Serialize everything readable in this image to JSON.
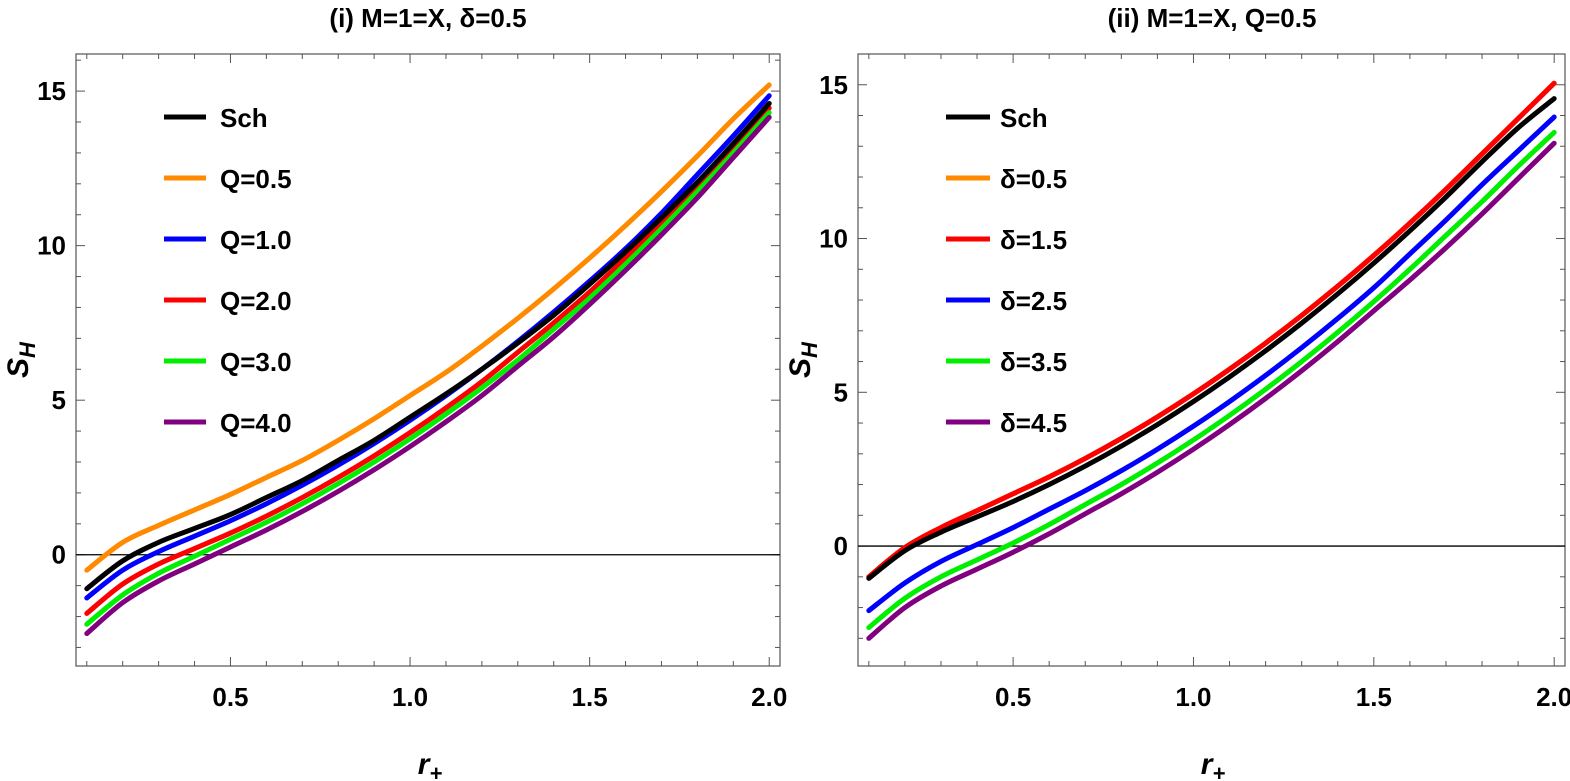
{
  "chart_data": [
    {
      "type": "line",
      "title": "(i) M=1=X, δ=0.5",
      "xlabel": "r+",
      "ylabel": "SH",
      "xlim": [
        0.07,
        2.03
      ],
      "ylim": [
        -3.6,
        16.2
      ],
      "xticks": [
        0.5,
        1.0,
        1.5,
        2.0
      ],
      "xtick_labels": [
        "0.5",
        "1.0",
        "1.5",
        "2.0"
      ],
      "yticks": [
        0,
        5,
        10,
        15
      ],
      "ytick_labels": [
        "0",
        "5",
        "10",
        "15"
      ],
      "legend_position": "top-left",
      "grid": false,
      "zero_line": true,
      "x": [
        0.1,
        0.2,
        0.3,
        0.4,
        0.5,
        0.6,
        0.7,
        0.8,
        0.9,
        1.0,
        1.1,
        1.2,
        1.3,
        1.4,
        1.5,
        1.6,
        1.7,
        1.8,
        1.9,
        2.0
      ],
      "series": [
        {
          "name": "Sch",
          "color": "#000000",
          "values": [
            -1.1,
            -0.2,
            0.4,
            0.85,
            1.3,
            1.85,
            2.4,
            3.05,
            3.7,
            4.45,
            5.2,
            6.0,
            6.85,
            7.75,
            8.75,
            9.8,
            10.9,
            12.05,
            13.3,
            14.6
          ]
        },
        {
          "name": "Q=0.5",
          "color": "#ff8a00",
          "values": [
            -0.5,
            0.4,
            0.95,
            1.45,
            1.95,
            2.5,
            3.05,
            3.7,
            4.4,
            5.15,
            5.9,
            6.75,
            7.65,
            8.6,
            9.6,
            10.65,
            11.75,
            12.9,
            14.1,
            15.2
          ]
        },
        {
          "name": "Q=1.0",
          "color": "#0000ff",
          "values": [
            -1.4,
            -0.5,
            0.1,
            0.6,
            1.1,
            1.65,
            2.25,
            2.9,
            3.6,
            4.35,
            5.15,
            6.0,
            6.9,
            7.85,
            8.85,
            9.9,
            11.05,
            12.3,
            13.55,
            14.85
          ]
        },
        {
          "name": "Q=2.0",
          "color": "#ff0000",
          "values": [
            -1.9,
            -0.95,
            -0.3,
            0.2,
            0.7,
            1.25,
            1.85,
            2.5,
            3.2,
            3.95,
            4.75,
            5.6,
            6.55,
            7.5,
            8.5,
            9.6,
            10.75,
            11.95,
            13.2,
            14.45
          ]
        },
        {
          "name": "Q=3.0",
          "color": "#00ee00",
          "values": [
            -2.25,
            -1.3,
            -0.6,
            -0.05,
            0.5,
            1.05,
            1.65,
            2.3,
            3.0,
            3.75,
            4.55,
            5.4,
            6.3,
            7.3,
            8.3,
            9.4,
            10.55,
            11.75,
            13.0,
            14.3
          ]
        },
        {
          "name": "Q=4.0",
          "color": "#800080",
          "values": [
            -2.55,
            -1.55,
            -0.85,
            -0.3,
            0.25,
            0.8,
            1.4,
            2.05,
            2.75,
            3.5,
            4.3,
            5.15,
            6.1,
            7.05,
            8.1,
            9.2,
            10.35,
            11.55,
            12.85,
            14.15
          ]
        }
      ]
    },
    {
      "type": "line",
      "title": "(ii) M=1=X, Q=0.5",
      "xlabel": "r+",
      "ylabel": "SH",
      "xlim": [
        0.07,
        2.03
      ],
      "ylim": [
        -3.9,
        16.0
      ],
      "xticks": [
        0.5,
        1.0,
        1.5,
        2.0
      ],
      "xtick_labels": [
        "0.5",
        "1.0",
        "1.5",
        "2.0"
      ],
      "yticks": [
        0,
        5,
        10,
        15
      ],
      "ytick_labels": [
        "0",
        "5",
        "10",
        "15"
      ],
      "legend_position": "top-left",
      "grid": false,
      "zero_line": true,
      "x": [
        0.1,
        0.2,
        0.3,
        0.4,
        0.5,
        0.6,
        0.7,
        0.8,
        0.9,
        1.0,
        1.1,
        1.2,
        1.3,
        1.4,
        1.5,
        1.6,
        1.7,
        1.8,
        1.9,
        2.0
      ],
      "series": [
        {
          "name": "Sch",
          "color": "#000000",
          "values": [
            -1.05,
            -0.15,
            0.45,
            0.95,
            1.45,
            2.0,
            2.6,
            3.25,
            3.95,
            4.7,
            5.5,
            6.35,
            7.25,
            8.2,
            9.2,
            10.25,
            11.35,
            12.5,
            13.6,
            14.55
          ]
        },
        {
          "name": "δ=0.5",
          "color": "#ff8a00",
          "values": [
            -1.0,
            -0.05,
            0.6,
            1.15,
            1.7,
            2.25,
            2.85,
            3.5,
            4.2,
            4.95,
            5.75,
            6.6,
            7.5,
            8.45,
            9.45,
            10.5,
            11.6,
            12.75,
            13.9,
            15.05
          ]
        },
        {
          "name": "δ=1.5",
          "color": "#ff0000",
          "values": [
            -1.0,
            -0.05,
            0.6,
            1.15,
            1.7,
            2.25,
            2.85,
            3.5,
            4.2,
            4.95,
            5.75,
            6.6,
            7.5,
            8.45,
            9.45,
            10.5,
            11.6,
            12.75,
            13.9,
            15.05
          ]
        },
        {
          "name": "δ=2.5",
          "color": "#0000ff",
          "values": [
            -2.1,
            -1.2,
            -0.5,
            0.05,
            0.6,
            1.2,
            1.8,
            2.45,
            3.15,
            3.9,
            4.7,
            5.55,
            6.45,
            7.4,
            8.4,
            9.5,
            10.6,
            11.75,
            12.85,
            13.95
          ]
        },
        {
          "name": "δ=3.5",
          "color": "#00ee00",
          "values": [
            -2.65,
            -1.7,
            -1.0,
            -0.45,
            0.1,
            0.7,
            1.35,
            2.0,
            2.7,
            3.45,
            4.25,
            5.1,
            6.0,
            6.95,
            7.95,
            9.0,
            10.1,
            11.2,
            12.35,
            13.45
          ]
        },
        {
          "name": "δ=4.5",
          "color": "#800080",
          "values": [
            -3.0,
            -2.0,
            -1.3,
            -0.75,
            -0.2,
            0.4,
            1.05,
            1.7,
            2.4,
            3.15,
            3.95,
            4.8,
            5.7,
            6.65,
            7.65,
            8.65,
            9.7,
            10.8,
            11.95,
            13.1
          ]
        }
      ]
    }
  ]
}
